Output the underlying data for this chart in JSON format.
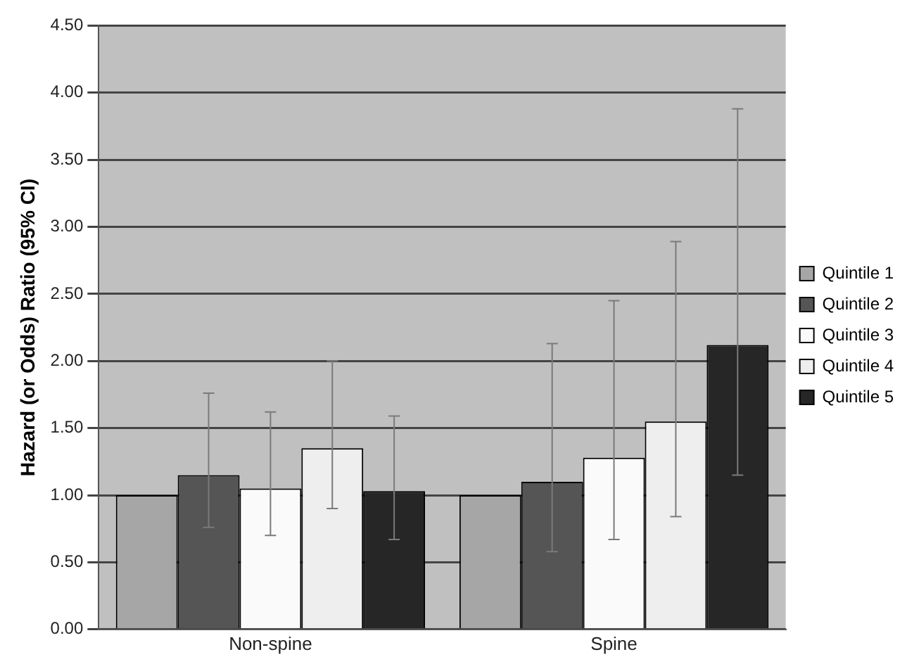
{
  "chart_data": {
    "type": "bar",
    "ylabel": "Hazard (or Odds) Ratio (95% CI)",
    "categories": [
      "Non-spine",
      "Spine"
    ],
    "series": [
      {
        "name": "Quintile 1",
        "color": "#a6a6a6",
        "values": [
          1.0,
          1.0
        ],
        "errors": [
          null,
          null
        ]
      },
      {
        "name": "Quintile 2",
        "color": "#555555",
        "values": [
          1.15,
          1.1
        ],
        "errors": [
          [
            0.76,
            1.76
          ],
          [
            0.58,
            2.13
          ]
        ]
      },
      {
        "name": "Quintile 3",
        "color": "#fafafa",
        "values": [
          1.05,
          1.28
        ],
        "errors": [
          [
            0.7,
            1.62
          ],
          [
            0.67,
            2.45
          ]
        ]
      },
      {
        "name": "Quintile 4",
        "color": "#eeeeee",
        "values": [
          1.35,
          1.55
        ],
        "errors": [
          [
            0.9,
            2.0
          ],
          [
            0.84,
            2.89
          ]
        ]
      },
      {
        "name": "Quintile 5",
        "color": "#262626",
        "values": [
          1.03,
          2.12
        ],
        "errors": [
          [
            0.67,
            1.59
          ],
          [
            1.15,
            3.88
          ]
        ]
      }
    ],
    "ylim": [
      0,
      4.5
    ],
    "yticks": [
      {
        "value": 0,
        "label": "0.00"
      },
      {
        "value": 0.5,
        "label": "0.50"
      },
      {
        "value": 1,
        "label": "1.00"
      },
      {
        "value": 1.5,
        "label": "1.50"
      },
      {
        "value": 2,
        "label": "2.00"
      },
      {
        "value": 2.5,
        "label": "2.50"
      },
      {
        "value": 3,
        "label": "3.00"
      },
      {
        "value": 3.5,
        "label": "3.50"
      },
      {
        "value": 4,
        "label": "4.00"
      },
      {
        "value": 4.5,
        "label": "4.50"
      }
    ],
    "grid": "y",
    "legend": "right"
  }
}
